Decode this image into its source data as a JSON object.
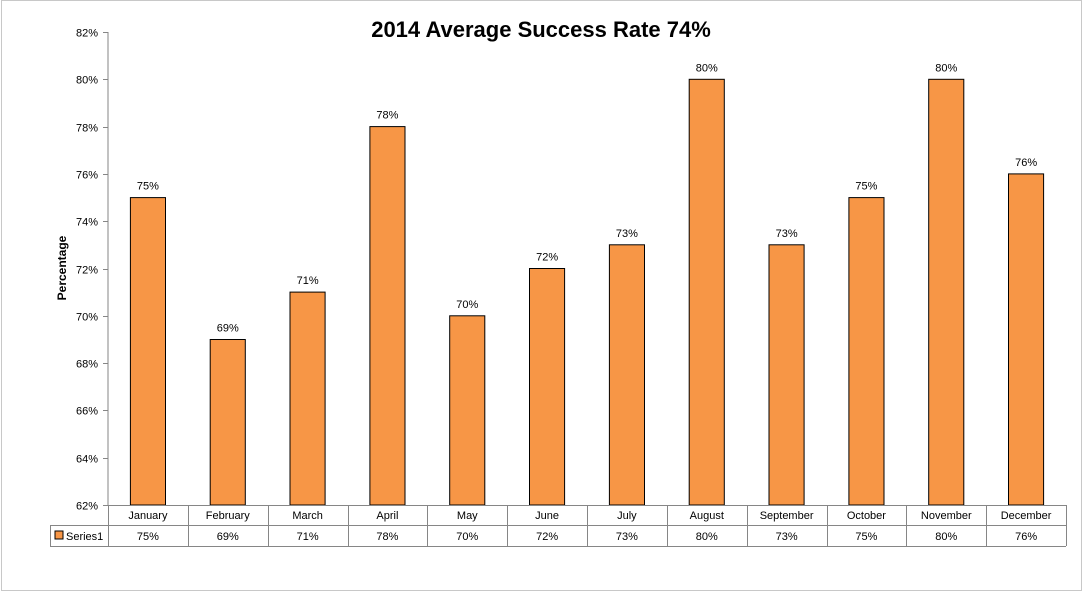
{
  "chart_data": {
    "type": "bar",
    "title": "2014 Average Success Rate 74%",
    "xlabel": "",
    "ylabel": "Percentage",
    "categories": [
      "January",
      "February",
      "March",
      "April",
      "May",
      "June",
      "July",
      "August",
      "September",
      "October",
      "November",
      "December"
    ],
    "series": [
      {
        "name": "Series1",
        "values": [
          75,
          69,
          71,
          78,
          70,
          72,
          73,
          80,
          73,
          75,
          80,
          76
        ],
        "labels": [
          "75%",
          "69%",
          "71%",
          "78%",
          "70%",
          "72%",
          "73%",
          "80%",
          "73%",
          "75%",
          "80%",
          "76%"
        ],
        "color": "#F79646"
      }
    ],
    "ylim": [
      62,
      82
    ],
    "yticks": [
      62,
      64,
      66,
      68,
      70,
      72,
      74,
      76,
      78,
      80,
      82
    ],
    "ytick_labels": [
      "62%",
      "64%",
      "66%",
      "68%",
      "70%",
      "72%",
      "74%",
      "76%",
      "78%",
      "80%",
      "82%"
    ],
    "grid": false,
    "data_table": true,
    "legend": "data table"
  }
}
